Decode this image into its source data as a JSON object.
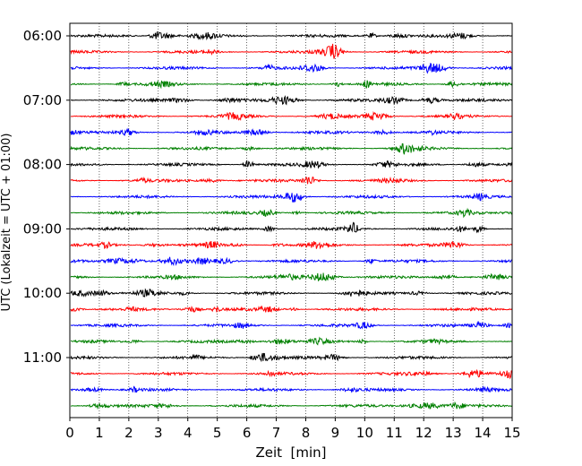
{
  "chart_data": {
    "type": "line",
    "title": "",
    "xlabel": "Zeit  [min]",
    "ylabel": "UTC (Lokalzeit = UTC + 01:00)",
    "xlim": [
      0,
      15
    ],
    "x_ticks": [
      0,
      1,
      2,
      3,
      4,
      5,
      6,
      7,
      8,
      9,
      10,
      11,
      12,
      13,
      14,
      15
    ],
    "x_tick_labels": [
      "0",
      "1",
      "2",
      "3",
      "4",
      "5",
      "6",
      "7",
      "8",
      "9",
      "10",
      "11",
      "12",
      "13",
      "14",
      "15"
    ],
    "y_ticks": [
      "06:00",
      "07:00",
      "08:00",
      "09:00",
      "10:00",
      "11:00"
    ],
    "grid": "vertical dotted",
    "legend": "none",
    "trace_interval_min": 15,
    "trace_colors": [
      "#000000",
      "#ff0000",
      "#0000ff",
      "#008000"
    ],
    "traces": [
      {
        "start": "06:00",
        "color": "#000000"
      },
      {
        "start": "06:15",
        "color": "#ff0000"
      },
      {
        "start": "06:30",
        "color": "#0000ff"
      },
      {
        "start": "06:45",
        "color": "#008000"
      },
      {
        "start": "07:00",
        "color": "#000000"
      },
      {
        "start": "07:15",
        "color": "#ff0000"
      },
      {
        "start": "07:30",
        "color": "#0000ff"
      },
      {
        "start": "07:45",
        "color": "#008000"
      },
      {
        "start": "08:00",
        "color": "#000000"
      },
      {
        "start": "08:15",
        "color": "#ff0000"
      },
      {
        "start": "08:30",
        "color": "#0000ff"
      },
      {
        "start": "08:45",
        "color": "#008000"
      },
      {
        "start": "09:00",
        "color": "#000000"
      },
      {
        "start": "09:15",
        "color": "#ff0000"
      },
      {
        "start": "09:30",
        "color": "#0000ff"
      },
      {
        "start": "09:45",
        "color": "#008000"
      },
      {
        "start": "10:00",
        "color": "#000000"
      },
      {
        "start": "10:15",
        "color": "#ff0000"
      },
      {
        "start": "10:30",
        "color": "#0000ff"
      },
      {
        "start": "10:45",
        "color": "#008000"
      },
      {
        "start": "11:00",
        "color": "#000000"
      },
      {
        "start": "11:15",
        "color": "#ff0000"
      },
      {
        "start": "11:30",
        "color": "#0000ff"
      },
      {
        "start": "11:45",
        "color": "#008000"
      }
    ]
  }
}
